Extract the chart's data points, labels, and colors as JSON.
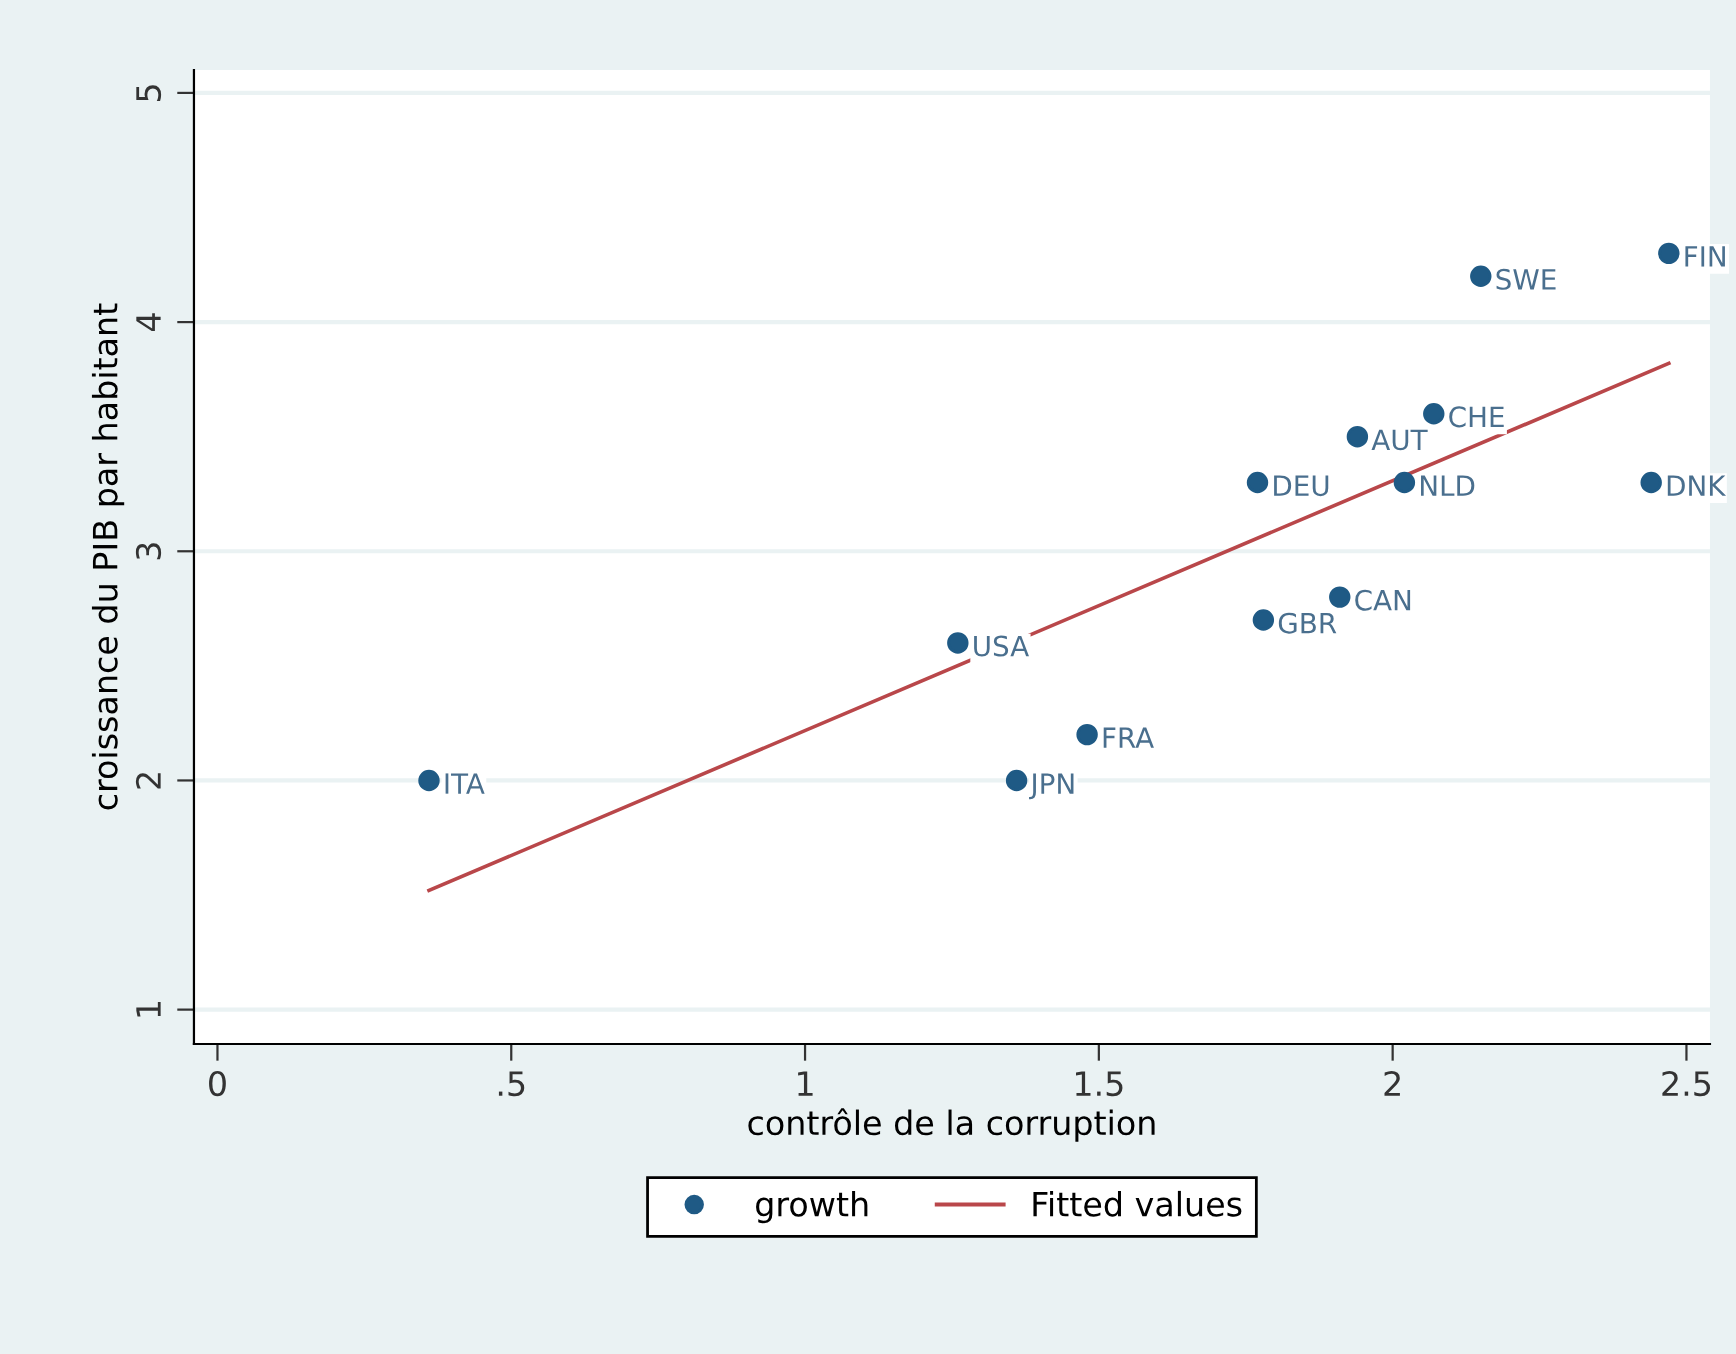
{
  "chart_data": {
    "type": "scatter",
    "xlabel": "contrôle de la corruption",
    "ylabel": "croissance du PIB par habitant",
    "xlim": [
      -0.04,
      2.54
    ],
    "ylim": [
      0.85,
      5.1
    ],
    "xticks": [
      0,
      {
        "value": 0.5,
        "label": ".5"
      },
      1,
      1.5,
      2,
      2.5
    ],
    "yticks": [
      1,
      2,
      3,
      4,
      5
    ],
    "grid": "y",
    "legend": "bottom",
    "series": [
      {
        "name": "growth",
        "marker": "circle",
        "color": "#1f5a85",
        "x": [
          0.36,
          1.26,
          1.36,
          1.48,
          1.78,
          1.91,
          1.77,
          1.94,
          2.07,
          2.02,
          2.15,
          2.47,
          2.44
        ],
        "values": [
          2.0,
          2.6,
          2.0,
          2.2,
          2.7,
          2.8,
          3.3,
          3.5,
          3.6,
          3.3,
          4.2,
          4.3,
          3.3
        ]
      },
      {
        "name": "Fitted values",
        "type": "line",
        "color": "#b9474a",
        "x": [
          0.36,
          2.47
        ],
        "values": [
          1.52,
          3.82
        ]
      }
    ],
    "annotations": [
      {
        "text": "ITA",
        "x": 0.36,
        "y": 2.0
      },
      {
        "text": "USA",
        "x": 1.26,
        "y": 2.6
      },
      {
        "text": "JPN",
        "x": 1.36,
        "y": 2.0
      },
      {
        "text": "FRA",
        "x": 1.48,
        "y": 2.2
      },
      {
        "text": "GBR",
        "x": 1.78,
        "y": 2.7
      },
      {
        "text": "CAN",
        "x": 1.91,
        "y": 2.8
      },
      {
        "text": "DEU",
        "x": 1.77,
        "y": 3.3
      },
      {
        "text": "AUT",
        "x": 1.94,
        "y": 3.5
      },
      {
        "text": "CHE",
        "x": 2.07,
        "y": 3.6
      },
      {
        "text": "NLD",
        "x": 2.02,
        "y": 3.3
      },
      {
        "text": "SWE",
        "x": 2.15,
        "y": 4.2
      },
      {
        "text": "FIN",
        "x": 2.47,
        "y": 4.3
      },
      {
        "text": "DNK",
        "x": 2.44,
        "y": 3.3
      }
    ]
  }
}
